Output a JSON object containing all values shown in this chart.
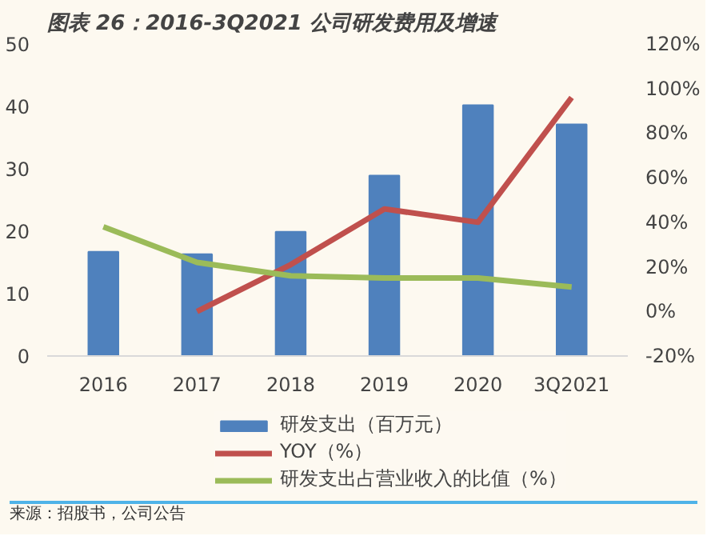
{
  "chart_data": {
    "type": "bar",
    "title": "图表 26：2016-3Q2021 公司研发费用及增速",
    "categories": [
      "2016",
      "2017",
      "2018",
      "2019",
      "2020",
      "3Q2021"
    ],
    "series": [
      {
        "name": "研发支出（百万元）",
        "color": "#4f81bd",
        "values": [
          16.7,
          16.3,
          19.9,
          28.9,
          40.2,
          37.1
        ]
      },
      {
        "name": "YOY（%）",
        "type": "line",
        "axis": "y2",
        "color": "#c0504d",
        "values": [
          null,
          0,
          21,
          46,
          40,
          96
        ]
      },
      {
        "name": "研发支出占营业收入的比值（%）",
        "type": "line",
        "axis": "y2",
        "color": "#9bbb59",
        "values": [
          38,
          22,
          16,
          15,
          15,
          11
        ]
      }
    ],
    "ylim": [
      0,
      50
    ],
    "yticks": [
      0,
      10,
      20,
      30,
      40,
      50
    ],
    "y2lim": [
      -20,
      120
    ],
    "y2ticks": [
      {
        "value": -20,
        "label": "-20%"
      },
      {
        "value": 0,
        "label": "0%"
      },
      {
        "value": 20,
        "label": "20%"
      },
      {
        "value": 40,
        "label": "40%"
      },
      {
        "value": 60,
        "label": "60%"
      },
      {
        "value": 80,
        "label": "80%"
      },
      {
        "value": 100,
        "label": "100%"
      },
      {
        "value": 120,
        "label": "120%"
      }
    ],
    "grid": false,
    "legend": "bottom",
    "marker": "none",
    "line_style": "solid",
    "annotations": [
      "来源：招股书，公司公告"
    ]
  }
}
